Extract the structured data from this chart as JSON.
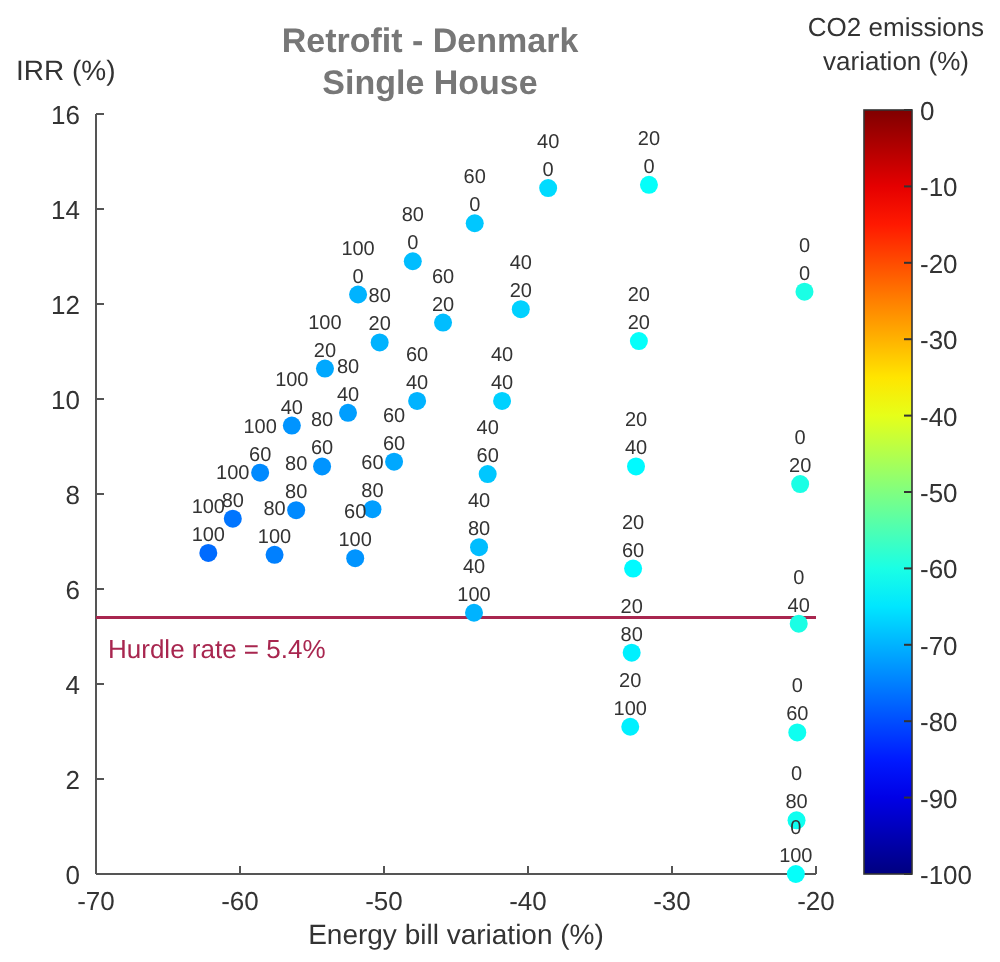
{
  "chart_data": {
    "type": "scatter",
    "title": "Retrofit - Denmark",
    "subtitle": "Single House",
    "xlabel": "Energy bill variation (%)",
    "ylabel": "IRR (%)",
    "clabel": "CO2 emissions\nvariation (%)",
    "xlim": [
      -70,
      -20
    ],
    "xticks": [
      -70,
      -60,
      -50,
      -40,
      -30,
      -20
    ],
    "ylim": [
      0,
      16
    ],
    "yticks": [
      0,
      2,
      4,
      6,
      8,
      10,
      12,
      14,
      16
    ],
    "clim": [
      -100,
      0
    ],
    "cticks": [
      -100,
      -90,
      -80,
      -70,
      -60,
      -50,
      -40,
      -30,
      -20,
      -10,
      0
    ],
    "grid": false,
    "marker": "circle",
    "series": [
      {
        "x": [
          -62.2,
          -60.5,
          -58.6,
          -56.4,
          -54.1,
          -51.8,
          -57.6,
          -56.1,
          -54.3,
          -52.5,
          -50.3,
          -48.0,
          -52.0,
          -50.8,
          -49.3,
          -47.7,
          -45.9,
          -43.7,
          -43.75,
          -43.4,
          -42.8,
          -41.8,
          -40.5,
          -38.6,
          -32.9,
          -32.8,
          -32.7,
          -32.5,
          -32.3,
          -31.6,
          -21.4,
          -21.35,
          -21.3,
          -21.2,
          -21.1,
          -20.8
        ],
        "values": [
          6.76,
          7.48,
          8.45,
          9.44,
          10.64,
          12.2,
          6.72,
          7.66,
          8.58,
          9.71,
          11.19,
          12.9,
          6.65,
          7.68,
          8.68,
          9.96,
          11.61,
          13.7,
          5.5,
          6.88,
          8.42,
          9.96,
          11.89,
          14.44,
          3.1,
          4.66,
          6.43,
          8.58,
          11.22,
          14.51,
          0,
          1.13,
          2.98,
          5.27,
          8.21,
          12.26
        ],
        "cvalues": [
          -77,
          -76,
          -74,
          -73,
          -71,
          -70,
          -75,
          -74,
          -73,
          -72,
          -70,
          -69,
          -73,
          -72,
          -71,
          -70,
          -69,
          -68,
          -70,
          -69,
          -68,
          -67,
          -67,
          -66,
          -64,
          -64,
          -63,
          -63,
          -62,
          -62,
          -62,
          -61,
          -61,
          -60,
          -60,
          -60
        ]
      }
    ],
    "annotations": [
      {
        "text": "100\n100",
        "x": -62.2,
        "y": 6.76
      },
      {
        "text": "100\n80",
        "x": -60.5,
        "y": 7.48
      },
      {
        "text": "100\n60",
        "x": -58.6,
        "y": 8.45
      },
      {
        "text": "100\n40",
        "x": -56.4,
        "y": 9.44
      },
      {
        "text": "100\n20",
        "x": -54.1,
        "y": 10.64
      },
      {
        "text": "100\n0",
        "x": -51.8,
        "y": 12.2
      },
      {
        "text": "80\n100",
        "x": -57.6,
        "y": 6.72
      },
      {
        "text": "80\n80",
        "x": -56.1,
        "y": 7.66
      },
      {
        "text": "80\n60",
        "x": -54.3,
        "y": 8.58
      },
      {
        "text": "80\n40",
        "x": -52.5,
        "y": 9.71
      },
      {
        "text": "80\n20",
        "x": -50.3,
        "y": 11.19
      },
      {
        "text": "80\n0",
        "x": -48.0,
        "y": 12.9
      },
      {
        "text": "60\n100",
        "x": -52.0,
        "y": 6.65
      },
      {
        "text": "60\n80",
        "x": -50.8,
        "y": 7.68
      },
      {
        "text": "60\n60",
        "x": -49.3,
        "y": 8.68
      },
      {
        "text": "60\n40",
        "x": -47.7,
        "y": 9.96
      },
      {
        "text": "60\n20",
        "x": -45.9,
        "y": 11.61
      },
      {
        "text": "60\n0",
        "x": -43.7,
        "y": 13.7
      },
      {
        "text": "40\n100",
        "x": -43.75,
        "y": 5.5
      },
      {
        "text": "40\n80",
        "x": -43.4,
        "y": 6.88
      },
      {
        "text": "40\n60",
        "x": -42.8,
        "y": 8.42
      },
      {
        "text": "40\n40",
        "x": -41.8,
        "y": 9.96
      },
      {
        "text": "40\n20",
        "x": -40.5,
        "y": 11.89
      },
      {
        "text": "40\n0",
        "x": -38.6,
        "y": 14.44
      },
      {
        "text": "20\n100",
        "x": -32.9,
        "y": 3.1
      },
      {
        "text": "20\n80",
        "x": -32.8,
        "y": 4.66
      },
      {
        "text": "20\n60",
        "x": -32.7,
        "y": 6.43
      },
      {
        "text": "20\n40",
        "x": -32.5,
        "y": 8.58
      },
      {
        "text": "20\n20",
        "x": -32.3,
        "y": 11.22
      },
      {
        "text": "20\n0",
        "x": -31.6,
        "y": 14.51
      },
      {
        "text": "0\n100",
        "x": -21.4,
        "y": 0
      },
      {
        "text": "0\n80",
        "x": -21.35,
        "y": 1.13
      },
      {
        "text": "0\n60",
        "x": -21.3,
        "y": 2.98
      },
      {
        "text": "0\n40",
        "x": -21.2,
        "y": 5.27
      },
      {
        "text": "0\n20",
        "x": -21.1,
        "y": 8.21
      },
      {
        "text": "0\n0",
        "x": -20.8,
        "y": 12.26
      }
    ],
    "ref_lines": [
      {
        "axis": "y",
        "value": 5.4,
        "label": "Hurdle rate = 5.4%",
        "color": "#a8264f"
      }
    ]
  }
}
